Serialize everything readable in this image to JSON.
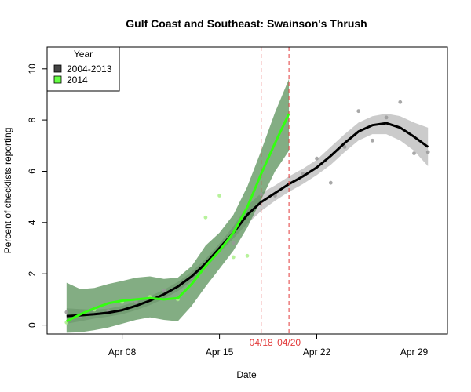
{
  "chart_data": {
    "type": "line",
    "title": "Gulf Coast and Southeast: Swainson's Thrush",
    "xlabel": "Date",
    "ylabel": "Percent of checklists reporting",
    "xlim": [
      2.6,
      31.4
    ],
    "ylim": [
      -0.35,
      10.85
    ],
    "x_ticks": [
      {
        "value": 8,
        "label": "Apr 08"
      },
      {
        "value": 15,
        "label": "Apr 15"
      },
      {
        "value": 22,
        "label": "Apr 22"
      },
      {
        "value": 29,
        "label": "Apr 29"
      }
    ],
    "y_ticks": [
      0,
      2,
      4,
      6,
      8,
      10
    ],
    "legend": {
      "title": "Year",
      "position": "top-left",
      "entries": [
        {
          "label": "2004-2013",
          "color": "#444444"
        },
        {
          "label": "2014",
          "color": "#66ff44"
        }
      ]
    },
    "vlines": [
      {
        "x": 18,
        "label": "04/18",
        "color": "#e23b3b"
      },
      {
        "x": 20,
        "label": "04/20",
        "color": "#e23b3b"
      }
    ],
    "series": [
      {
        "name": "2004-2013",
        "line_color": "#000000",
        "band_color": "#b5b5b5",
        "point_color": "#999999",
        "x": [
          4,
          5,
          6,
          7,
          8,
          9,
          10,
          11,
          12,
          13,
          14,
          15,
          16,
          17,
          18,
          19,
          20,
          21,
          22,
          23,
          24,
          25,
          26,
          27,
          28,
          29,
          30
        ],
        "y": [
          0.35,
          0.38,
          0.42,
          0.48,
          0.58,
          0.75,
          0.95,
          1.2,
          1.5,
          1.9,
          2.4,
          3.0,
          3.6,
          4.3,
          4.8,
          5.15,
          5.5,
          5.8,
          6.15,
          6.6,
          7.1,
          7.55,
          7.8,
          7.88,
          7.7,
          7.35,
          6.95
        ],
        "lower": [
          0.05,
          0.15,
          0.25,
          0.33,
          0.42,
          0.58,
          0.78,
          1.02,
          1.32,
          1.72,
          2.22,
          2.82,
          3.38,
          3.95,
          4.45,
          4.85,
          5.2,
          5.5,
          5.85,
          6.25,
          6.75,
          7.2,
          7.45,
          7.45,
          7.2,
          6.8,
          6.2
        ],
        "upper": [
          0.65,
          0.62,
          0.6,
          0.64,
          0.75,
          0.92,
          1.12,
          1.38,
          1.68,
          2.08,
          2.58,
          3.18,
          3.85,
          4.65,
          5.15,
          5.45,
          5.8,
          6.1,
          6.45,
          6.95,
          7.45,
          7.9,
          8.15,
          8.25,
          8.15,
          7.9,
          7.7
        ],
        "points": [
          [
            4,
            0.5
          ],
          [
            5,
            0.35
          ],
          [
            7,
            0.55
          ],
          [
            9,
            0.9
          ],
          [
            11,
            1.35
          ],
          [
            13,
            1.85
          ],
          [
            16,
            3.2
          ],
          [
            18,
            5.1
          ],
          [
            19,
            5.05
          ],
          [
            21,
            5.9
          ],
          [
            22,
            6.5
          ],
          [
            23,
            5.55
          ],
          [
            24,
            6.95
          ],
          [
            25,
            8.35
          ],
          [
            26,
            7.2
          ],
          [
            27,
            8.1
          ],
          [
            28,
            8.7
          ],
          [
            29,
            6.7
          ],
          [
            30,
            6.75
          ]
        ]
      },
      {
        "name": "2014",
        "line_color": "#33ff11",
        "band_color": "#4f8a4f",
        "point_color": "#aaf08a",
        "x": [
          4,
          5,
          6,
          7,
          8,
          9,
          10,
          11,
          12,
          13,
          14,
          15,
          16,
          17,
          18,
          19,
          20
        ],
        "y": [
          0.15,
          0.42,
          0.65,
          0.85,
          0.95,
          1.0,
          1.05,
          1.0,
          1.05,
          1.6,
          2.3,
          2.9,
          3.6,
          4.6,
          5.9,
          7.1,
          8.25
        ],
        "lower": [
          -0.3,
          -0.28,
          -0.2,
          -0.1,
          0.05,
          0.2,
          0.3,
          0.2,
          0.15,
          0.75,
          1.5,
          2.2,
          2.9,
          3.8,
          4.9,
          6.0,
          6.8
        ],
        "upper": [
          1.65,
          1.4,
          1.45,
          1.6,
          1.72,
          1.85,
          1.9,
          1.8,
          1.85,
          2.3,
          3.1,
          3.6,
          4.3,
          5.4,
          6.8,
          8.3,
          9.6
        ],
        "points": [
          [
            4,
            0.1
          ],
          [
            6,
            0.6
          ],
          [
            8,
            0.9
          ],
          [
            10,
            1.1
          ],
          [
            12,
            1.0
          ],
          [
            14,
            4.2
          ],
          [
            15,
            5.05
          ],
          [
            16,
            2.65
          ],
          [
            17,
            2.7
          ]
        ]
      }
    ]
  }
}
